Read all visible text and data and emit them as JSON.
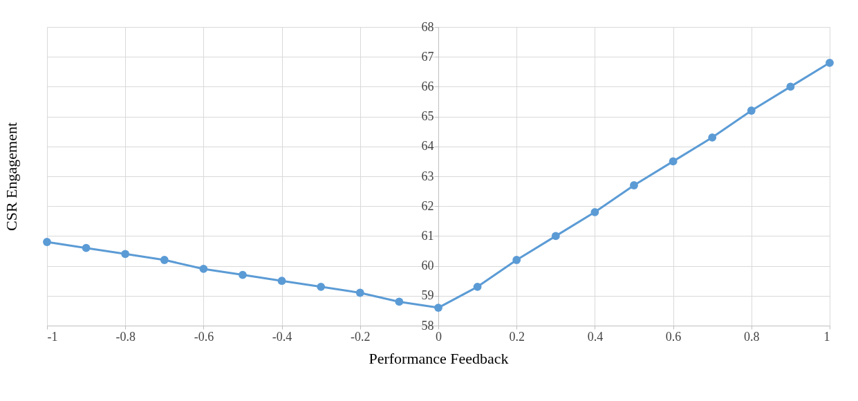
{
  "chart_data": {
    "type": "line",
    "xlabel": "Performance Feedback",
    "ylabel": "CSR Engagement",
    "x": [
      -1,
      -0.9,
      -0.8,
      -0.7,
      -0.6,
      -0.5,
      -0.4,
      -0.3,
      -0.2,
      -0.1,
      0,
      0.1,
      0.2,
      0.3,
      0.4,
      0.5,
      0.6,
      0.7,
      0.8,
      0.9,
      1
    ],
    "series": [
      {
        "color": "#5b9bd5",
        "values": [
          60.8,
          60.6,
          60.4,
          60.2,
          59.9,
          59.7,
          59.5,
          59.3,
          59.1,
          58.8,
          58.6,
          59.3,
          60.2,
          61.0,
          61.8,
          62.7,
          63.5,
          64.3,
          65.2,
          66.0,
          66.8
        ]
      }
    ],
    "xlim": [
      -1,
      1
    ],
    "xticks": [
      -1,
      -0.8,
      -0.6,
      -0.4,
      -0.2,
      0,
      0.2,
      0.4,
      0.6,
      0.8,
      1
    ],
    "ylim": [
      58,
      68
    ],
    "yticks": [
      58,
      59,
      60,
      61,
      62,
      63,
      64,
      65,
      66,
      67,
      68
    ],
    "grid": true,
    "marker": "circle",
    "line_style": "solid"
  }
}
